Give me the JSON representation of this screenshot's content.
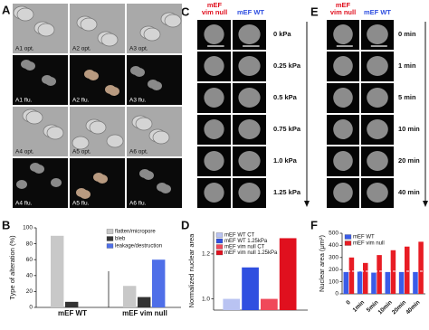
{
  "panel_labels": [
    "A",
    "B",
    "C",
    "D",
    "E",
    "F"
  ],
  "panel_a": {
    "captions": [
      "A1 opt.",
      "A2 opt.",
      "A3 opt.",
      "A1 flu.",
      "A2 flu.",
      "A3 flu.",
      "A4 opt.",
      "A5 opt.",
      "A6 opt.",
      "A4 flu.",
      "A5 flu.",
      "A6 flu."
    ]
  },
  "panel_c": {
    "header_null": [
      "mEF",
      "vim null"
    ],
    "header_wt": "mEF WT",
    "rows": [
      "0 kPa",
      "0.25 kPa",
      "0.5 kPa",
      "0.75 kPa",
      "1.0 kPa",
      "1.25 kPa"
    ]
  },
  "panel_e": {
    "header_null": [
      "mEF",
      "vim null"
    ],
    "header_wt": "mEF WT",
    "rows": [
      "0 min",
      "1 min",
      "5 min",
      "10 min",
      "20 min",
      "40 min"
    ]
  },
  "chart_data": [
    {
      "type": "bar",
      "ylabel": "Type of alteration (%)",
      "categories": [
        "mEF WT",
        "mEF vim null"
      ],
      "series": [
        {
          "name": "flatten/micropore",
          "color": "#c8c8c8",
          "values": [
            90,
            27
          ]
        },
        {
          "name": "bleb",
          "color": "#333333",
          "values": [
            7,
            13
          ]
        },
        {
          "name": "leakage/destruction",
          "color": "#4f6fe8",
          "values": [
            0,
            60
          ]
        }
      ],
      "ylim": [
        0,
        100
      ],
      "yticks": [
        0,
        20,
        40,
        60,
        80,
        100
      ],
      "legend": "upper right"
    },
    {
      "type": "bar",
      "ylabel": "Normalized nuclear area",
      "categories": [
        null
      ],
      "series": [
        {
          "name": "mEF WT CT",
          "color": "#b9c3f2",
          "values": [
            1.0
          ]
        },
        {
          "name": "mEF WT 1.25kPa",
          "color": "#2f4fe0",
          "values": [
            1.14
          ]
        },
        {
          "name": "mEF vim null CT",
          "color": "#f0495a",
          "values": [
            1.0
          ]
        },
        {
          "name": "mEF vim null 1.25kPa",
          "color": "#e0101e",
          "values": [
            1.27
          ]
        }
      ],
      "ylim": [
        0.95,
        1.3
      ],
      "yticks": [
        {
          "value": 1,
          "label": "1.0"
        },
        {
          "value": 1.2,
          "label": "1.2"
        }
      ],
      "legend": "upper left"
    },
    {
      "type": "bar",
      "ylabel": "Nuclear area (μm²)",
      "categories": [
        "0",
        "1min",
        "5min",
        "10min",
        "20min",
        "40min"
      ],
      "series": [
        {
          "name": "mEF WT",
          "color": "#3a5ce8",
          "values": [
            180,
            185,
            175,
            180,
            180,
            180
          ]
        },
        {
          "name": "mEF vim null",
          "color": "#e81c24",
          "values": [
            300,
            255,
            320,
            360,
            390,
            430
          ]
        }
      ],
      "ylim": [
        0,
        500
      ],
      "yticks": [
        0,
        100,
        200,
        300,
        400,
        500
      ],
      "legend": "upper left"
    }
  ]
}
